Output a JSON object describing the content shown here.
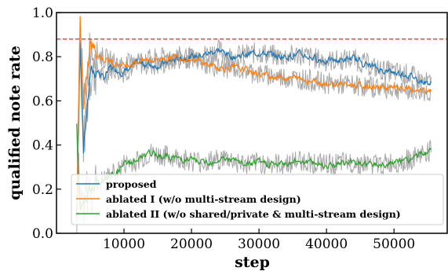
{
  "chart_data": {
    "type": "line",
    "title": "",
    "xlabel": "step",
    "ylabel": "qualified note rate",
    "xlim": [
      0,
      58000
    ],
    "ylim": [
      0.0,
      1.0
    ],
    "xticks": [
      10000,
      20000,
      30000,
      40000,
      50000
    ],
    "xtick_labels": [
      "10000",
      "20000",
      "30000",
      "40000",
      "50000"
    ],
    "yticks": [
      0.0,
      0.2,
      0.4,
      0.6,
      0.8,
      1.0
    ],
    "ytick_labels": [
      "0.0",
      "0.2",
      "0.4",
      "0.6",
      "0.8",
      "1.0"
    ],
    "grid": false,
    "legend_position": "bottom",
    "reference_line": {
      "y": 0.88,
      "style": "dashed",
      "color": "#d62728"
    },
    "series": [
      {
        "name": "proposed",
        "color": "#1f77b4",
        "x": [
          3000,
          3500,
          4000,
          4500,
          5000,
          6000,
          7000,
          8000,
          10000,
          12000,
          15000,
          18000,
          20000,
          22000,
          24000,
          26000,
          28000,
          30000,
          33000,
          36000,
          40000,
          44000,
          48000,
          52000,
          55000
        ],
        "values": [
          0.1,
          0.85,
          0.4,
          0.55,
          0.72,
          0.74,
          0.7,
          0.75,
          0.73,
          0.77,
          0.76,
          0.79,
          0.8,
          0.81,
          0.83,
          0.8,
          0.81,
          0.82,
          0.8,
          0.81,
          0.78,
          0.79,
          0.74,
          0.72,
          0.68
        ]
      },
      {
        "name": "ablated I (w/o multi-stream design)",
        "color": "#ff7f0e",
        "x": [
          3000,
          3500,
          4000,
          4500,
          5000,
          6000,
          7000,
          8000,
          10000,
          12000,
          15000,
          18000,
          20000,
          22000,
          24000,
          26000,
          28000,
          30000,
          33000,
          36000,
          40000,
          44000,
          48000,
          52000,
          55000
        ],
        "values": [
          0.05,
          0.98,
          0.55,
          0.7,
          0.85,
          0.82,
          0.79,
          0.78,
          0.76,
          0.78,
          0.79,
          0.8,
          0.79,
          0.77,
          0.75,
          0.75,
          0.74,
          0.72,
          0.71,
          0.7,
          0.68,
          0.67,
          0.66,
          0.65,
          0.64
        ]
      },
      {
        "name": "ablated II (w/o shared/private & multi-stream design)",
        "color": "#2ca02c",
        "x": [
          3000,
          3500,
          4000,
          5000,
          6000,
          7000,
          8000,
          9000,
          10000,
          12000,
          14000,
          16000,
          18000,
          20000,
          22000,
          25000,
          28000,
          30000,
          33000,
          36000,
          40000,
          44000,
          48000,
          52000,
          55000
        ],
        "values": [
          0.47,
          0.1,
          0.15,
          0.2,
          0.22,
          0.24,
          0.26,
          0.28,
          0.31,
          0.33,
          0.36,
          0.35,
          0.34,
          0.33,
          0.32,
          0.34,
          0.31,
          0.32,
          0.31,
          0.33,
          0.31,
          0.32,
          0.31,
          0.33,
          0.37
        ]
      }
    ]
  }
}
